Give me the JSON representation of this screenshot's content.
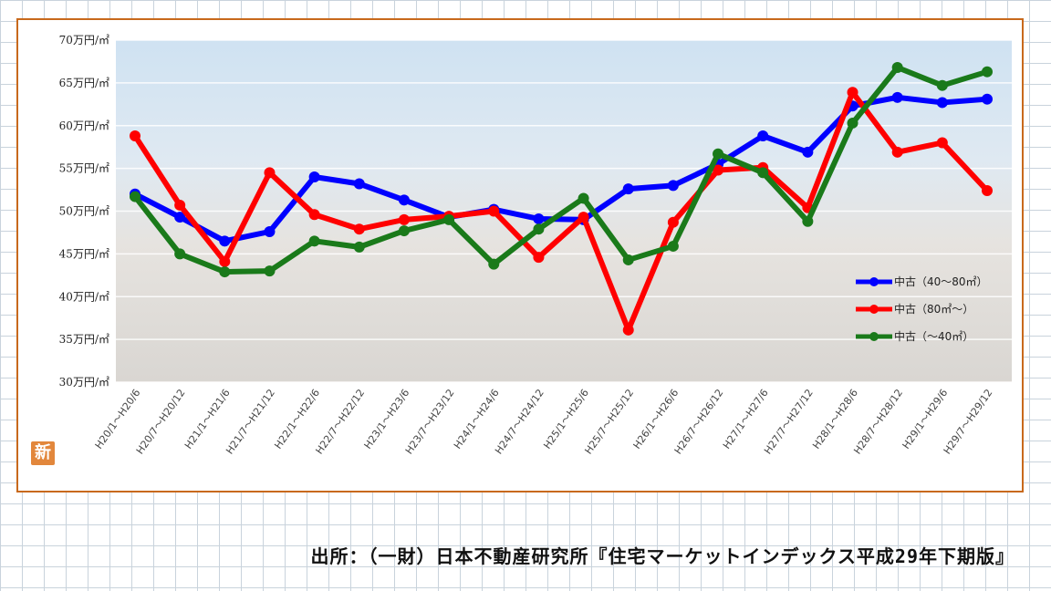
{
  "badge": "新",
  "source": "出所：（一財）日本不動産研究所『住宅マーケットインデックス平成29年下期版』",
  "chart_data": {
    "type": "line",
    "title": "",
    "xlabel": "",
    "ylabel": "",
    "ylim": [
      30,
      70
    ],
    "y_ticks": [
      30,
      35,
      40,
      45,
      50,
      55,
      60,
      65,
      70
    ],
    "y_tick_labels": [
      "30万円/㎡",
      "35万円/㎡",
      "40万円/㎡",
      "45万円/㎡",
      "50万円/㎡",
      "55万円/㎡",
      "60万円/㎡",
      "65万円/㎡",
      "70万円/㎡"
    ],
    "grid": true,
    "legend_position": "right",
    "categories": [
      "H20/1～H20/6",
      "H20/7～H20/12",
      "H21/1～H21/6",
      "H21/7～H21/12",
      "H22/1～H22/6",
      "H22/7～H22/12",
      "H23/1～H23/6",
      "H23/7～H23/12",
      "H24/1～H24/6",
      "H24/7～H24/12",
      "H25/1～H25/6",
      "H25/7～H25/12",
      "H26/1～H26/6",
      "H26/7～H26/12",
      "H27/1～H27/6",
      "H27/7～H27/12",
      "H28/1～H28/6",
      "H28/7～H28/12",
      "H29/1～H29/6",
      "H29/7～H29/12"
    ],
    "series": [
      {
        "name": "中古（40～80㎡）",
        "color": "#0000ff",
        "values": [
          52.0,
          49.3,
          46.5,
          47.6,
          54.0,
          53.2,
          51.3,
          49.3,
          50.2,
          49.1,
          49.0,
          52.6,
          53.0,
          55.5,
          58.8,
          56.9,
          62.3,
          63.3,
          62.7,
          63.1
        ]
      },
      {
        "name": "中古（80㎡～）",
        "color": "#ff0000",
        "values": [
          58.8,
          50.7,
          44.1,
          54.5,
          49.6,
          47.9,
          49.0,
          49.4,
          50.0,
          44.6,
          49.3,
          36.1,
          48.7,
          54.8,
          55.1,
          50.4,
          63.9,
          56.9,
          58.0,
          52.4
        ]
      },
      {
        "name": "中古（～40㎡）",
        "color": "#1a7a1a",
        "values": [
          51.7,
          45.0,
          42.9,
          43.0,
          46.5,
          45.8,
          47.7,
          49.0,
          43.8,
          47.9,
          51.5,
          44.3,
          45.9,
          56.7,
          54.5,
          48.8,
          60.3,
          66.8,
          64.7,
          66.3
        ]
      }
    ]
  }
}
